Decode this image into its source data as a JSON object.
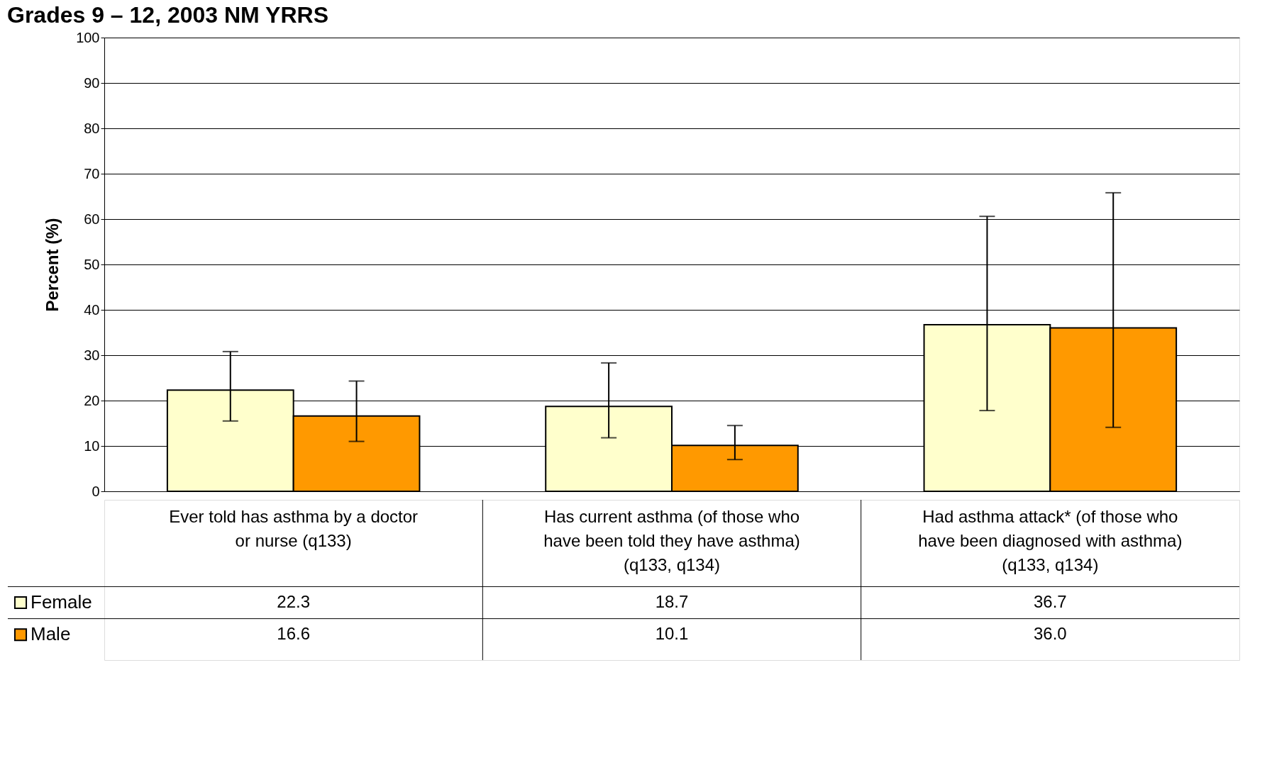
{
  "chart_data": {
    "type": "bar",
    "title": "Grades 9 – 12, 2003 NM YRRS",
    "ylabel": "Percent (%)",
    "categories": [
      "Ever told has asthma by a doctor or nurse (q133)",
      "Has current asthma (of those who have been told they have asthma) (q133, q134)",
      "Had asthma attack* (of those who have been diagnosed with asthma) (q133, q134)"
    ],
    "series": [
      {
        "name": "Female",
        "color": "#ffffcc",
        "values": [
          22.3,
          18.7,
          36.7
        ],
        "value_labels": [
          "22.3",
          "18.7",
          "36.7"
        ],
        "errors": [
          [
            15.5,
            30.8
          ],
          [
            11.8,
            28.3
          ],
          [
            17.8,
            60.6
          ]
        ]
      },
      {
        "name": "Male",
        "color": "#ff9900",
        "values": [
          16.6,
          10.1,
          36.0
        ],
        "value_labels": [
          "16.6",
          "10.1",
          "36.0"
        ],
        "errors": [
          [
            11.0,
            24.3
          ],
          [
            7.0,
            14.5
          ],
          [
            14.1,
            65.8
          ]
        ]
      }
    ],
    "ylim": [
      0,
      100
    ],
    "yticks": [
      0,
      10,
      20,
      30,
      40,
      50,
      60,
      70,
      80,
      90,
      100
    ],
    "grid": "y",
    "legend": "bottom left"
  }
}
